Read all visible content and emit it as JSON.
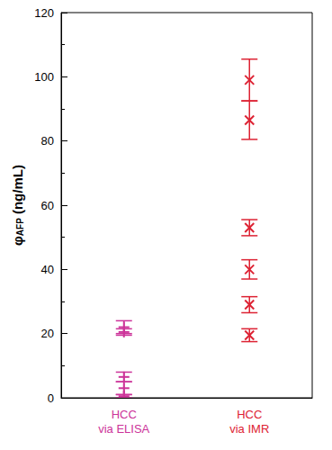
{
  "chart_data": {
    "type": "scatter",
    "ylabel": {
      "symbol": "φ",
      "subscript": "AFP",
      "unit": " (ng/mL)"
    },
    "categories": [
      "HCC\nvia ELISA",
      "HCC\nvia IMR"
    ],
    "ylim": [
      0,
      120
    ],
    "yticks": [
      0,
      20,
      40,
      60,
      80,
      100,
      120
    ],
    "grid": false,
    "series": [
      {
        "x": [
          "HCC\nvia ELISA",
          "HCC\nvia ELISA",
          "HCC\nvia ELISA",
          "HCC\nvia ELISA",
          "HCC\nvia ELISA"
        ],
        "values": [
          22,
          20.5,
          6.5,
          3,
          0.5
        ],
        "errors": [
          2,
          1,
          1.5,
          2,
          0.5
        ],
        "color": "#cc3399",
        "marker": "plus"
      },
      {
        "x": [
          "HCC\nvia IMR",
          "HCC\nvia IMR",
          "HCC\nvia IMR",
          "HCC\nvia IMR",
          "HCC\nvia IMR",
          "HCC\nvia IMR"
        ],
        "values": [
          99,
          86.5,
          53,
          40,
          29,
          19.5
        ],
        "errors": [
          6.5,
          6,
          2.5,
          3,
          2.5,
          2
        ],
        "color": "#dd2233",
        "marker": "cross"
      }
    ]
  }
}
